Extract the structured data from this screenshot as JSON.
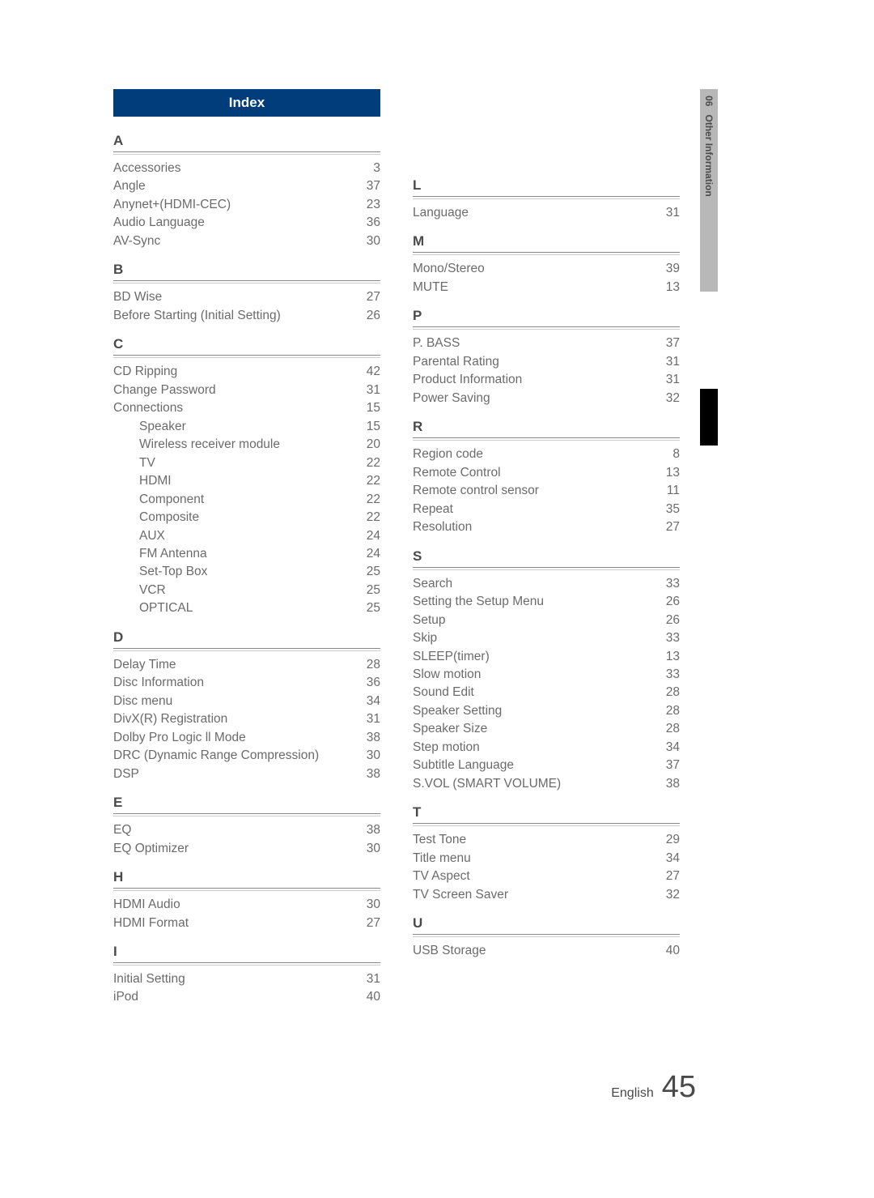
{
  "header": {
    "title": "Index"
  },
  "sideTab": {
    "section_num": "06",
    "section_label": "Other Information"
  },
  "footer": {
    "language": "English",
    "page_number": "45"
  },
  "leftCol": [
    {
      "letter": "A",
      "items": [
        {
          "label": "Accessories",
          "page": "3"
        },
        {
          "label": "Angle",
          "page": "37"
        },
        {
          "label": "Anynet+(HDMI-CEC)",
          "page": "23"
        },
        {
          "label": "Audio Language",
          "page": "36"
        },
        {
          "label": "AV-Sync",
          "page": "30"
        }
      ]
    },
    {
      "letter": "B",
      "items": [
        {
          "label": "BD Wise",
          "page": "27"
        },
        {
          "label": "Before Starting (Initial Setting)",
          "page": "26"
        }
      ]
    },
    {
      "letter": "C",
      "items": [
        {
          "label": "CD Ripping",
          "page": "42"
        },
        {
          "label": "Change Password",
          "page": "31"
        },
        {
          "label": "Connections",
          "page": "15"
        },
        {
          "label": "Speaker",
          "page": "15",
          "indent": true
        },
        {
          "label": "Wireless receiver module",
          "page": "20",
          "indent": true
        },
        {
          "label": "TV",
          "page": "22",
          "indent": true
        },
        {
          "label": "HDMI",
          "page": "22",
          "indent": true
        },
        {
          "label": "Component",
          "page": "22",
          "indent": true
        },
        {
          "label": "Composite",
          "page": "22",
          "indent": true
        },
        {
          "label": "AUX",
          "page": "24",
          "indent": true
        },
        {
          "label": "FM Antenna",
          "page": "24",
          "indent": true
        },
        {
          "label": "Set-Top Box",
          "page": "25",
          "indent": true
        },
        {
          "label": "VCR",
          "page": "25",
          "indent": true
        },
        {
          "label": "OPTICAL",
          "page": "25",
          "indent": true
        }
      ]
    },
    {
      "letter": "D",
      "items": [
        {
          "label": "Delay Time",
          "page": "28"
        },
        {
          "label": "Disc Information",
          "page": "36"
        },
        {
          "label": "Disc menu",
          "page": "34"
        },
        {
          "label": "DivX(R) Registration",
          "page": "31"
        },
        {
          "label": "Dolby Pro Logic ll Mode",
          "page": "38"
        },
        {
          "label": "DRC (Dynamic Range Compression)",
          "page": "30"
        },
        {
          "label": "DSP",
          "page": "38"
        }
      ]
    },
    {
      "letter": "E",
      "items": [
        {
          "label": "EQ",
          "page": "38"
        },
        {
          "label": "EQ Optimizer",
          "page": "30"
        }
      ]
    },
    {
      "letter": "H",
      "items": [
        {
          "label": "HDMI Audio",
          "page": "30"
        },
        {
          "label": "HDMI Format",
          "page": "27"
        }
      ]
    },
    {
      "letter": "I",
      "items": [
        {
          "label": "Initial Setting",
          "page": "31"
        },
        {
          "label": "iPod",
          "page": "40"
        }
      ]
    }
  ],
  "rightCol": [
    {
      "letter": "L",
      "items": [
        {
          "label": "Language",
          "page": "31"
        }
      ]
    },
    {
      "letter": "M",
      "items": [
        {
          "label": "Mono/Stereo",
          "page": "39"
        },
        {
          "label": "MUTE",
          "page": "13"
        }
      ]
    },
    {
      "letter": "P",
      "items": [
        {
          "label": "P. BASS",
          "page": "37"
        },
        {
          "label": "Parental Rating",
          "page": "31"
        },
        {
          "label": "Product Information",
          "page": "31"
        },
        {
          "label": "Power Saving",
          "page": "32"
        }
      ]
    },
    {
      "letter": "R",
      "items": [
        {
          "label": "Region code",
          "page": "8"
        },
        {
          "label": "Remote Control",
          "page": "13"
        },
        {
          "label": "Remote control sensor",
          "page": "11"
        },
        {
          "label": "Repeat",
          "page": "35"
        },
        {
          "label": "Resolution",
          "page": "27"
        }
      ]
    },
    {
      "letter": "S",
      "items": [
        {
          "label": "Search",
          "page": "33"
        },
        {
          "label": "Setting the Setup Menu",
          "page": "26"
        },
        {
          "label": "Setup",
          "page": "26"
        },
        {
          "label": "Skip",
          "page": "33"
        },
        {
          "label": "SLEEP(timer)",
          "page": "13"
        },
        {
          "label": "Slow motion",
          "page": "33"
        },
        {
          "label": "Sound Edit",
          "page": "28"
        },
        {
          "label": "Speaker Setting",
          "page": "28"
        },
        {
          "label": "Speaker Size",
          "page": "28"
        },
        {
          "label": "Step motion",
          "page": "34"
        },
        {
          "label": "Subtitle Language",
          "page": "37"
        },
        {
          "label": "S.VOL (SMART VOLUME)",
          "page": "38"
        }
      ]
    },
    {
      "letter": "T",
      "items": [
        {
          "label": "Test Tone",
          "page": "29"
        },
        {
          "label": "Title menu",
          "page": "34"
        },
        {
          "label": "TV Aspect",
          "page": "27"
        },
        {
          "label": "TV Screen Saver",
          "page": "32"
        }
      ]
    },
    {
      "letter": "U",
      "items": [
        {
          "label": "USB Storage",
          "page": "40"
        }
      ]
    }
  ]
}
